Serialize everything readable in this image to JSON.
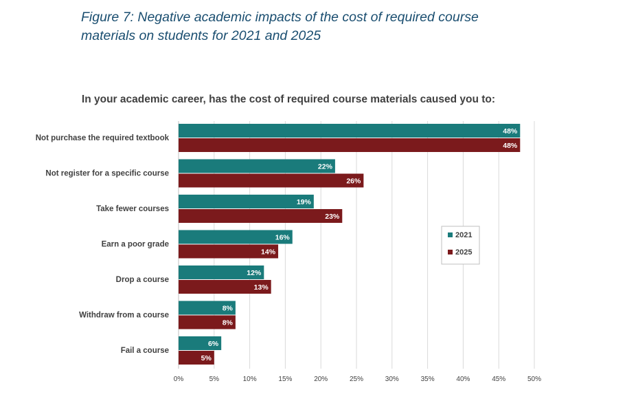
{
  "figure_caption": "Figure 7: Negative academic impacts of the cost of required course materials on students for 2021 and 2025",
  "colors": {
    "series_2021": "#1a7b7b",
    "series_2025": "#7b1a1c",
    "gridline": "#d9d9d9",
    "axis": "#bfbfbf"
  },
  "chart_data": {
    "type": "bar",
    "orientation": "horizontal",
    "title": "In your academic career, has the cost of required course materials caused you to:",
    "categories": [
      "Not purchase the required textbook",
      "Not register for a specific course",
      "Take fewer courses",
      "Earn a poor grade",
      "Drop a course",
      "Withdraw from a course",
      "Fail a course"
    ],
    "series": [
      {
        "name": "2021",
        "values": [
          48,
          22,
          19,
          16,
          12,
          8,
          6
        ],
        "labels": [
          "48%",
          "22%",
          "19%",
          "16%",
          "12%",
          "8%",
          "6%"
        ]
      },
      {
        "name": "2025",
        "values": [
          48,
          26,
          23,
          14,
          13,
          8,
          5
        ],
        "labels": [
          "48%",
          "26%",
          "23%",
          "14%",
          "13%",
          "8%",
          "5%"
        ]
      }
    ],
    "xlim": [
      0,
      50
    ],
    "xticks": [
      0,
      5,
      10,
      15,
      20,
      25,
      30,
      35,
      40,
      45,
      50
    ],
    "xtick_labels": [
      "0%",
      "5%",
      "10%",
      "15%",
      "20%",
      "25%",
      "30%",
      "35%",
      "40%",
      "45%",
      "50%"
    ],
    "xlabel": "",
    "ylabel": "",
    "grid": true,
    "legend": {
      "entries": [
        "2021",
        "2025"
      ],
      "position": "right"
    }
  }
}
